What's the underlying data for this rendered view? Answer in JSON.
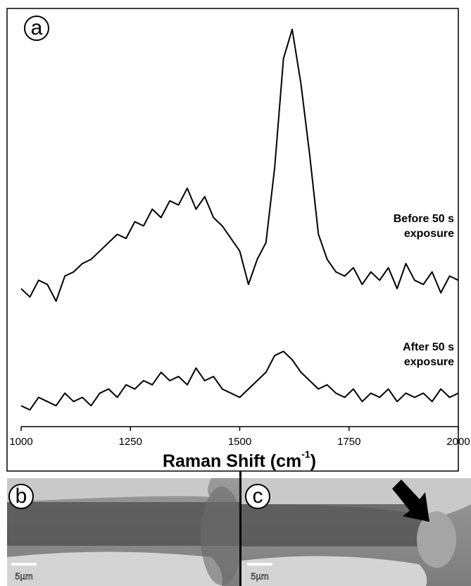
{
  "chart_data": {
    "type": "line",
    "panel_label": "a",
    "xlabel": {
      "text": "Raman Shift (cm",
      "superscript": "-1",
      "suffix": ")"
    },
    "x": [
      1000,
      1020,
      1040,
      1060,
      1080,
      1100,
      1120,
      1140,
      1160,
      1180,
      1200,
      1220,
      1240,
      1260,
      1280,
      1300,
      1320,
      1340,
      1360,
      1380,
      1400,
      1420,
      1440,
      1460,
      1480,
      1500,
      1520,
      1540,
      1560,
      1580,
      1600,
      1620,
      1640,
      1660,
      1680,
      1700,
      1720,
      1740,
      1760,
      1780,
      1800,
      1820,
      1840,
      1860,
      1880,
      1900,
      1920,
      1940,
      1960,
      1980,
      2000
    ],
    "series": [
      {
        "name": "Before 50 s exposure",
        "color": "#000000",
        "values": [
          33,
          31,
          35,
          34,
          30,
          36,
          37,
          39,
          40,
          42,
          44,
          46,
          45,
          49,
          48,
          52,
          50,
          54,
          53,
          57,
          52,
          55,
          50,
          48,
          45,
          42,
          34,
          40,
          44,
          62,
          88,
          95,
          82,
          65,
          46,
          40,
          37,
          36,
          38,
          34,
          37,
          35,
          38,
          33,
          39,
          35,
          34,
          37,
          32,
          36,
          35
        ]
      },
      {
        "name": "After 50 s exposure",
        "color": "#000000",
        "values": [
          5,
          4,
          7,
          6,
          5,
          8,
          6,
          7,
          5,
          8,
          9,
          7,
          10,
          9,
          11,
          10,
          13,
          11,
          12,
          10,
          14,
          11,
          12,
          9,
          8,
          7,
          9,
          11,
          13,
          17,
          18,
          16,
          13,
          11,
          9,
          10,
          8,
          7,
          9,
          6,
          8,
          7,
          9,
          6,
          8,
          7,
          8,
          6,
          9,
          7,
          8
        ]
      }
    ],
    "xlim": [
      1000,
      2000
    ],
    "xticks": [
      1000,
      1250,
      1500,
      1750,
      2000
    ],
    "ylim": [
      0,
      100
    ],
    "grid": false
  },
  "panels": [
    {
      "label": "b",
      "scale_bar": "5µm"
    },
    {
      "label": "c",
      "scale_bar": "5µm"
    }
  ]
}
